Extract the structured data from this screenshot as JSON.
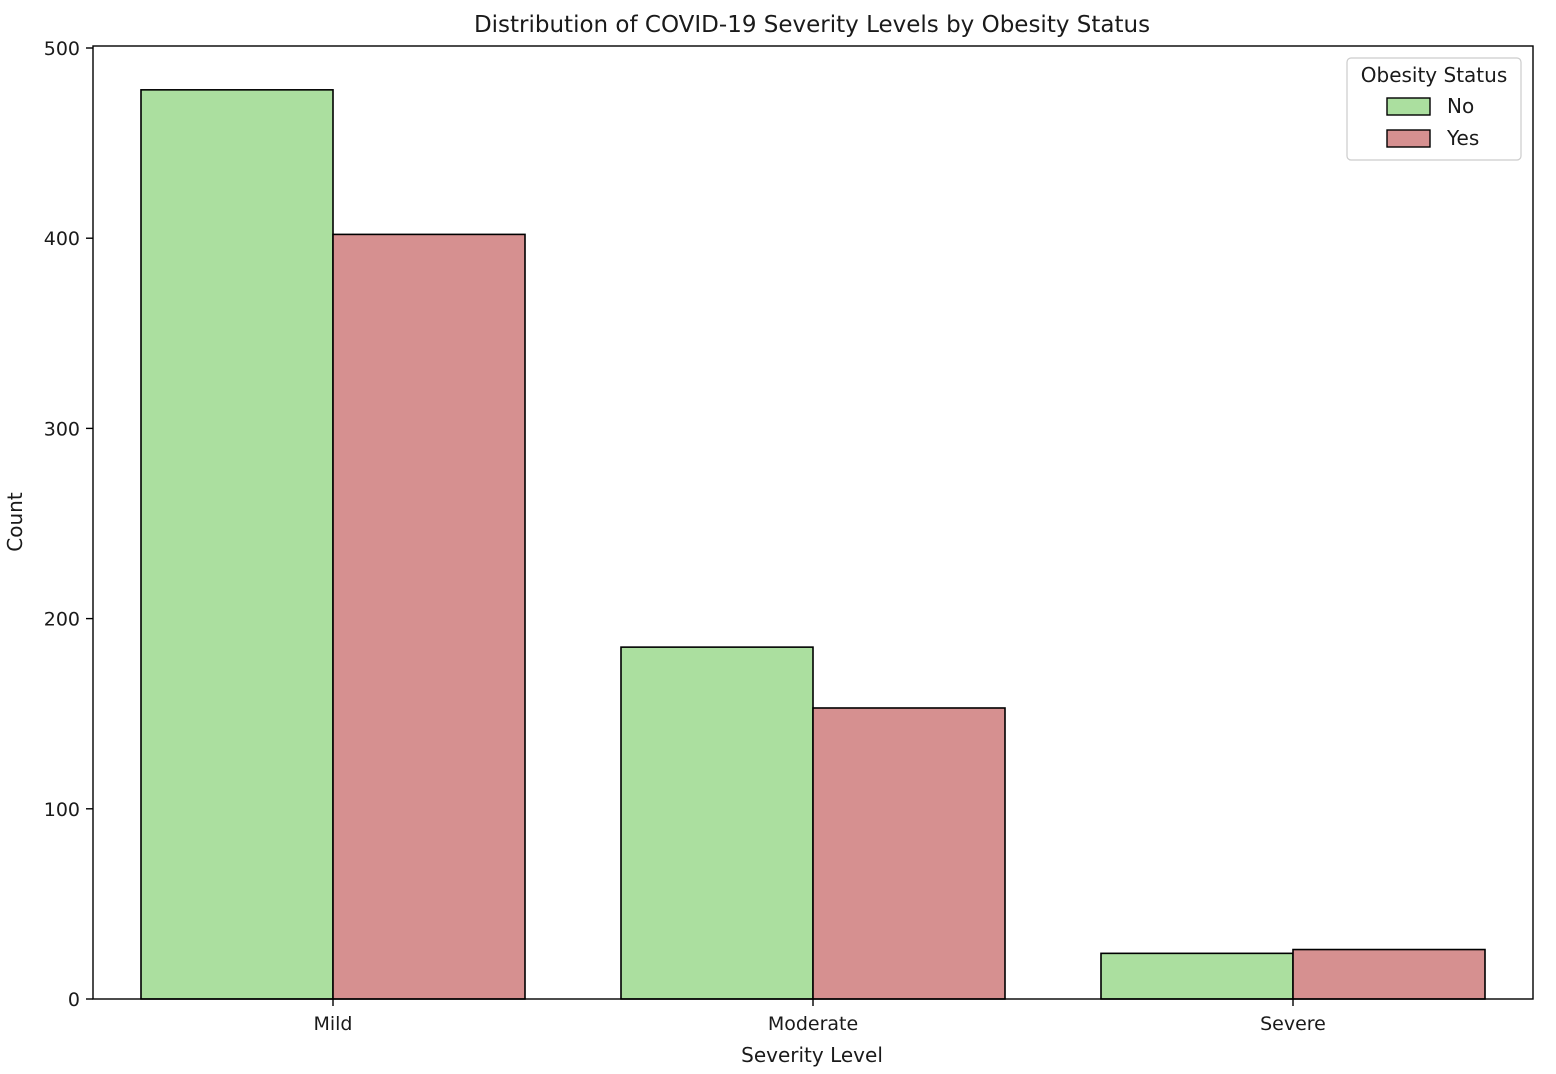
{
  "chart_data": {
    "type": "bar",
    "title": "Distribution of COVID-19 Severity Levels by Obesity Status",
    "xlabel": "Severity Level",
    "ylabel": "Count",
    "categories": [
      "Mild",
      "Moderate",
      "Severe"
    ],
    "ylim": [
      0,
      500
    ],
    "yticks": [
      0,
      100,
      200,
      300,
      400,
      500
    ],
    "grid": false,
    "legend": {
      "title": "Obesity Status",
      "placement": "top-right"
    },
    "series": [
      {
        "name": "No",
        "color": "#abdf9f",
        "values": [
          478,
          185,
          24
        ]
      },
      {
        "name": "Yes",
        "color": "#d69090",
        "values": [
          402,
          153,
          26
        ]
      }
    ]
  }
}
